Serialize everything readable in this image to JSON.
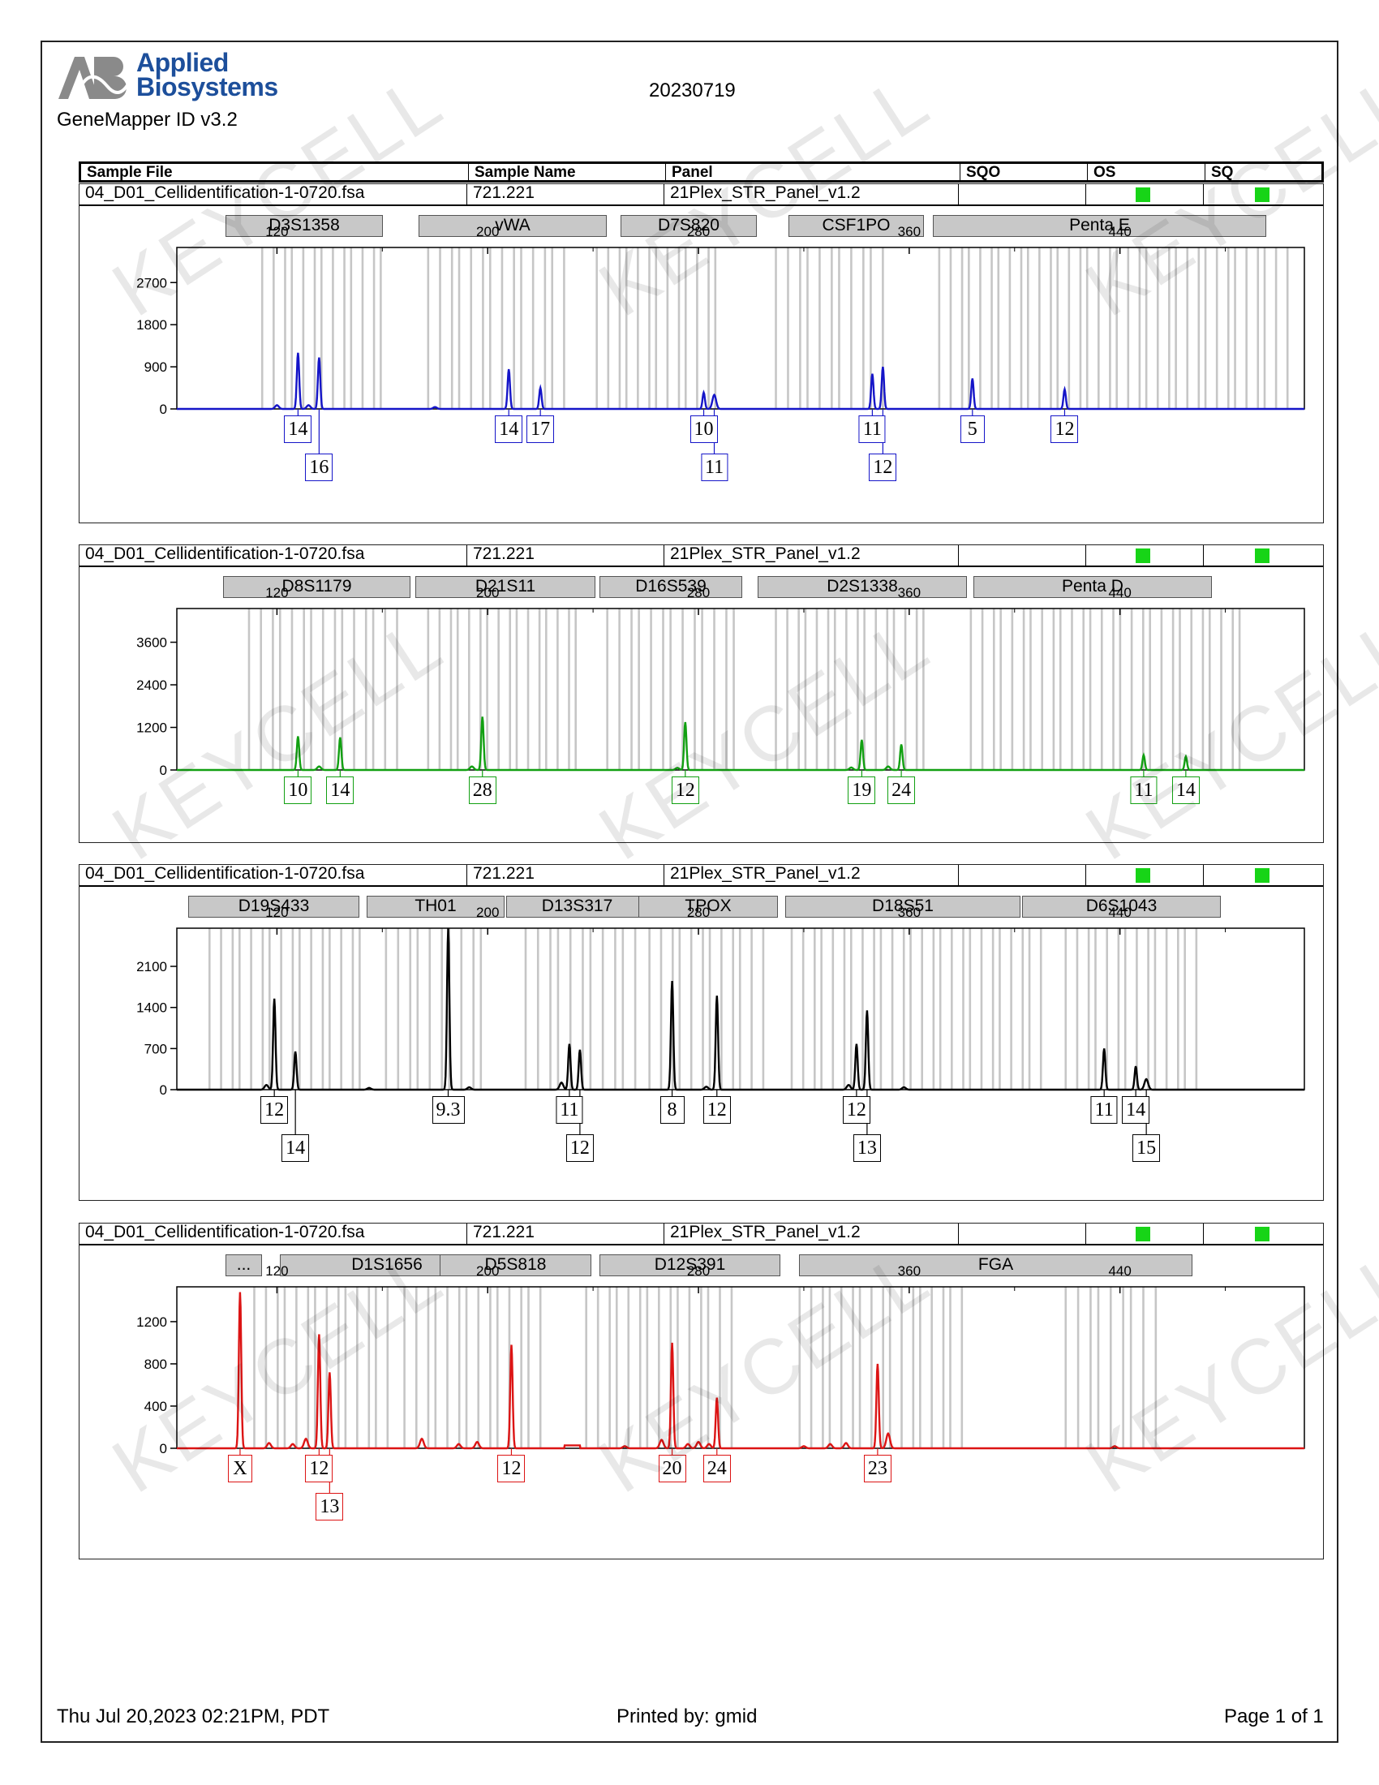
{
  "brand": {
    "line1": "Applied",
    "line2": "Biosystems",
    "software": "GeneMapper ID v3.2"
  },
  "report_date": "20230719",
  "header": {
    "sample_file": "Sample File",
    "sample_name": "Sample Name",
    "panel": "Panel",
    "sqo": "SQO",
    "os": "OS",
    "sq": "SQ"
  },
  "watermark": "KEYCELL",
  "colors": {
    "blue": "#1515c8",
    "green": "#12a012",
    "black": "#000000",
    "red": "#dc1414",
    "status": "#17d417",
    "bin": "#c8c8c8"
  },
  "footer": {
    "date": "Thu Jul 20,2023 02:21PM, PDT",
    "printed_by": "Printed by: gmid",
    "page": "Page 1 of 1"
  },
  "chart_data": [
    {
      "type": "line",
      "dye": "blue",
      "sample_file": "04_D01_Cellidentification-1-0720.fsa",
      "sample_name": "721.221",
      "panel": "21Plex_STR_Panel_v1.2",
      "x_ticks": [
        120,
        200,
        280,
        360,
        440
      ],
      "xlim": [
        82,
        510
      ],
      "y_ticks": [
        0,
        900,
        1800,
        2700
      ],
      "ylim": [
        0,
        3450
      ],
      "loci": [
        "D3S1358",
        "vWA",
        "D7S820",
        "CSF1PO",
        "Penta E"
      ],
      "peaks": [
        [
          120,
          80
        ],
        [
          128,
          1200
        ],
        [
          132,
          80
        ],
        [
          136,
          1100
        ],
        [
          180,
          40
        ],
        [
          208,
          850
        ],
        [
          220,
          450
        ],
        [
          282,
          350
        ],
        [
          286,
          300
        ],
        [
          346,
          750
        ],
        [
          350,
          900
        ],
        [
          384,
          650
        ],
        [
          419,
          420
        ]
      ],
      "alleles": [
        {
          "label": "14",
          "x": 128,
          "row": 1
        },
        {
          "label": "16",
          "x": 136,
          "row": 2
        },
        {
          "label": "14",
          "x": 208,
          "row": 1
        },
        {
          "label": "17",
          "x": 220,
          "row": 1
        },
        {
          "label": "10",
          "x": 282,
          "row": 1
        },
        {
          "label": "11",
          "x": 286,
          "row": 2
        },
        {
          "label": "11",
          "x": 346,
          "row": 1
        },
        {
          "label": "12",
          "x": 350,
          "row": 2
        },
        {
          "label": "5",
          "x": 384,
          "row": 1
        },
        {
          "label": "12",
          "x": 419,
          "row": 1
        }
      ]
    },
    {
      "type": "line",
      "dye": "green",
      "sample_file": "04_D01_Cellidentification-1-0720.fsa",
      "sample_name": "721.221",
      "panel": "21Plex_STR_Panel_v1.2",
      "x_ticks": [
        120,
        200,
        280,
        360,
        440
      ],
      "xlim": [
        82,
        510
      ],
      "y_ticks": [
        0,
        1200,
        2400,
        3600
      ],
      "ylim": [
        0,
        4550
      ],
      "loci": [
        "D8S1179",
        "D21S11",
        "D16S539",
        "D2S1338",
        "Penta D"
      ],
      "peaks": [
        [
          128,
          950
        ],
        [
          136,
          100
        ],
        [
          144,
          920
        ],
        [
          194,
          100
        ],
        [
          198,
          1500
        ],
        [
          272,
          60
        ],
        [
          275,
          1350
        ],
        [
          338,
          70
        ],
        [
          342,
          850
        ],
        [
          352,
          100
        ],
        [
          357,
          720
        ],
        [
          449,
          420
        ],
        [
          465,
          380
        ]
      ],
      "alleles": [
        {
          "label": "10",
          "x": 128,
          "row": 1
        },
        {
          "label": "14",
          "x": 144,
          "row": 1
        },
        {
          "label": "28",
          "x": 198,
          "row": 1
        },
        {
          "label": "12",
          "x": 275,
          "row": 1
        },
        {
          "label": "19",
          "x": 342,
          "row": 1
        },
        {
          "label": "24",
          "x": 357,
          "row": 1
        },
        {
          "label": "11",
          "x": 449,
          "row": 1
        },
        {
          "label": "14",
          "x": 465,
          "row": 1
        }
      ]
    },
    {
      "type": "line",
      "dye": "black",
      "sample_file": "04_D01_Cellidentification-1-0720.fsa",
      "sample_name": "721.221",
      "panel": "21Plex_STR_Panel_v1.2",
      "x_ticks": [
        120,
        200,
        280,
        360,
        440
      ],
      "xlim": [
        82,
        510
      ],
      "y_ticks": [
        0,
        700,
        1400,
        2100
      ],
      "ylim": [
        0,
        2750
      ],
      "loci": [
        "D19S433",
        "TH01",
        "D13S317",
        "TPOX",
        "D18S51",
        "D6S1043"
      ],
      "peaks": [
        [
          116,
          80
        ],
        [
          119,
          1550
        ],
        [
          127,
          650
        ],
        [
          155,
          30
        ],
        [
          185,
          2750
        ],
        [
          193,
          40
        ],
        [
          228,
          120
        ],
        [
          231,
          780
        ],
        [
          235,
          680
        ],
        [
          270,
          1850
        ],
        [
          283,
          50
        ],
        [
          287,
          1600
        ],
        [
          337,
          80
        ],
        [
          340,
          780
        ],
        [
          344,
          1350
        ],
        [
          358,
          40
        ],
        [
          434,
          700
        ],
        [
          446,
          400
        ],
        [
          450,
          180
        ]
      ],
      "alleles": [
        {
          "label": "12",
          "x": 119,
          "row": 1
        },
        {
          "label": "14",
          "x": 127,
          "row": 2
        },
        {
          "label": "9.3",
          "x": 185,
          "row": 1
        },
        {
          "label": "11",
          "x": 231,
          "row": 1
        },
        {
          "label": "12",
          "x": 235,
          "row": 2
        },
        {
          "label": "8",
          "x": 270,
          "row": 1
        },
        {
          "label": "12",
          "x": 287,
          "row": 1
        },
        {
          "label": "12",
          "x": 340,
          "row": 1
        },
        {
          "label": "13",
          "x": 344,
          "row": 2
        },
        {
          "label": "11",
          "x": 434,
          "row": 1
        },
        {
          "label": "14",
          "x": 446,
          "row": 1
        },
        {
          "label": "15",
          "x": 450,
          "row": 2
        }
      ]
    },
    {
      "type": "line",
      "dye": "red",
      "sample_file": "04_D01_Cellidentification-1-0720.fsa",
      "sample_name": "721.221",
      "panel": "21Plex_STR_Panel_v1.2",
      "x_ticks": [
        120,
        200,
        280,
        360,
        440
      ],
      "xlim": [
        82,
        510
      ],
      "y_ticks": [
        0,
        400,
        800,
        1200
      ],
      "ylim": [
        0,
        1530
      ],
      "loci": [
        "...",
        "D1S1656",
        "D5S818",
        "D12S391",
        "FGA"
      ],
      "peaks": [
        [
          106,
          1480
        ],
        [
          117,
          50
        ],
        [
          126,
          40
        ],
        [
          131,
          90
        ],
        [
          136,
          1080
        ],
        [
          140,
          720
        ],
        [
          175,
          90
        ],
        [
          189,
          40
        ],
        [
          196,
          60
        ],
        [
          209,
          980
        ],
        [
          252,
          20
        ],
        [
          266,
          80
        ],
        [
          270,
          1000
        ],
        [
          276,
          40
        ],
        [
          280,
          60
        ],
        [
          284,
          40
        ],
        [
          287,
          480
        ],
        [
          320,
          20
        ],
        [
          330,
          40
        ],
        [
          336,
          50
        ],
        [
          348,
          800
        ],
        [
          352,
          140
        ],
        [
          438,
          20
        ]
      ],
      "alleles": [
        {
          "label": "X",
          "x": 106,
          "row": 1
        },
        {
          "label": "12",
          "x": 136,
          "row": 1
        },
        {
          "label": "13",
          "x": 140,
          "row": 2
        },
        {
          "label": "12",
          "x": 209,
          "row": 1
        },
        {
          "label": "20",
          "x": 270,
          "row": 1
        },
        {
          "label": "24",
          "x": 287,
          "row": 1
        },
        {
          "label": "23",
          "x": 348,
          "row": 1
        }
      ]
    }
  ]
}
